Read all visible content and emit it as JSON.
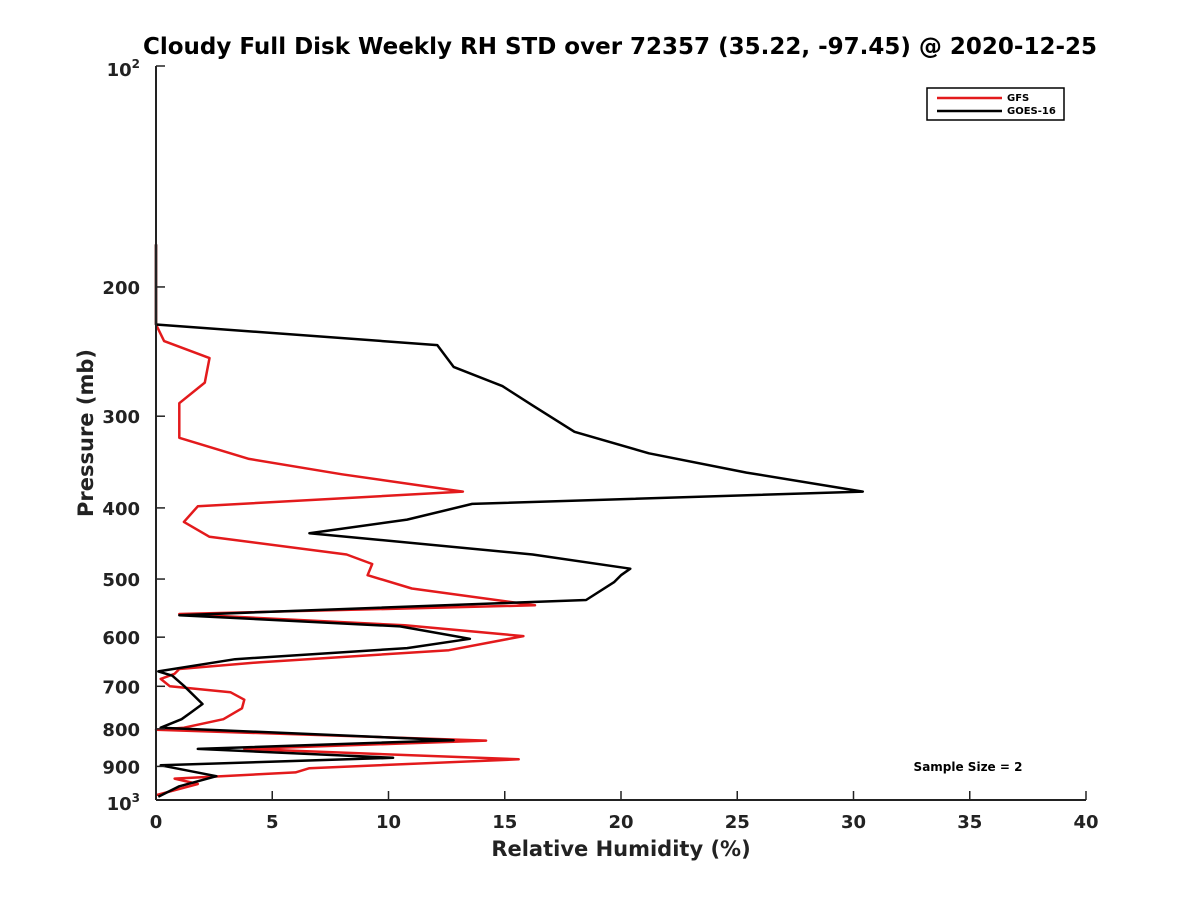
{
  "chart_data": {
    "type": "line",
    "title": "Cloudy Full Disk Weekly RH STD over 72357 (35.22, -97.45) @ 2020-12-25",
    "xlabel": "Relative Humidity (%)",
    "ylabel": "Pressure (mb)",
    "xlim": [
      0,
      40
    ],
    "ylim": [
      100,
      1000
    ],
    "yscale": "log",
    "y_reversed": true,
    "x_ticks": [
      0,
      5,
      10,
      15,
      20,
      25,
      30,
      35,
      40
    ],
    "x_tick_labels": [
      "0",
      "5",
      "10",
      "15",
      "20",
      "25",
      "30",
      "35",
      "40"
    ],
    "y_ticks": [
      200,
      300,
      400,
      500,
      600,
      700,
      800,
      900
    ],
    "y_tick_labels": [
      "200",
      "300",
      "400",
      "500",
      "600",
      "700",
      "800",
      "900"
    ],
    "y_top_label": {
      "base": "10",
      "exp": "2"
    },
    "y_bottom_label": {
      "base": "10",
      "exp": "3"
    },
    "grid": false,
    "legend_position": "top-right",
    "annotation": "Sample Size = 2",
    "series": [
      {
        "name": "GFS",
        "color": "#e31a1c",
        "points": [
          [
            0,
            175
          ],
          [
            0,
            225
          ],
          [
            0.35,
            237
          ],
          [
            2.3,
            250
          ],
          [
            2.1,
            270
          ],
          [
            1.0,
            288
          ],
          [
            1.0,
            321
          ],
          [
            4.0,
            343
          ],
          [
            8.0,
            360
          ],
          [
            13.2,
            380
          ],
          [
            1.8,
            398
          ],
          [
            1.2,
            418
          ],
          [
            2.3,
            438
          ],
          [
            8.2,
            463
          ],
          [
            9.3,
            477
          ],
          [
            9.1,
            494
          ],
          [
            11.0,
            515
          ],
          [
            16.3,
            543
          ],
          [
            1.0,
            558
          ],
          [
            10.7,
            578
          ],
          [
            15.8,
            598
          ],
          [
            12.6,
            625
          ],
          [
            4.5,
            649
          ],
          [
            1.0,
            663
          ],
          [
            0.8,
            673
          ],
          [
            0.2,
            684
          ],
          [
            0.6,
            700
          ],
          [
            3.2,
            713
          ],
          [
            3.8,
            730
          ],
          [
            3.7,
            750
          ],
          [
            2.9,
            776
          ],
          [
            1.2,
            797
          ],
          [
            0,
            802
          ],
          [
            14.2,
            830
          ],
          [
            3.8,
            852
          ],
          [
            15.6,
            880
          ],
          [
            6.6,
            905
          ],
          [
            6.0,
            917
          ],
          [
            0.8,
            935
          ],
          [
            1.8,
            951
          ],
          [
            0,
            985
          ]
        ]
      },
      {
        "name": "GOES-16",
        "color": "#000000",
        "points": [
          [
            0,
            175
          ],
          [
            0,
            225
          ],
          [
            12.1,
            240
          ],
          [
            12.8,
            257
          ],
          [
            14.9,
            273
          ],
          [
            16.2,
            290
          ],
          [
            18.0,
            315
          ],
          [
            21.2,
            337
          ],
          [
            25.4,
            358
          ],
          [
            30.4,
            380
          ],
          [
            13.6,
            395
          ],
          [
            10.8,
            415
          ],
          [
            6.6,
            433
          ],
          [
            16.2,
            463
          ],
          [
            20.4,
            484
          ],
          [
            20.0,
            494
          ],
          [
            19.7,
            505
          ],
          [
            18.5,
            534
          ],
          [
            1.0,
            560
          ],
          [
            10.5,
            580
          ],
          [
            13.5,
            603
          ],
          [
            10.8,
            621
          ],
          [
            3.4,
            643
          ],
          [
            0.1,
            668
          ],
          [
            0.7,
            677
          ],
          [
            1.2,
            699
          ],
          [
            2.0,
            740
          ],
          [
            1.5,
            760
          ],
          [
            1.1,
            776
          ],
          [
            0.2,
            797
          ],
          [
            12.8,
            829
          ],
          [
            1.8,
            852
          ],
          [
            10.2,
            876
          ],
          [
            0.2,
            897
          ],
          [
            2.6,
            928
          ],
          [
            1.0,
            958
          ],
          [
            0.1,
            990
          ]
        ]
      }
    ]
  }
}
